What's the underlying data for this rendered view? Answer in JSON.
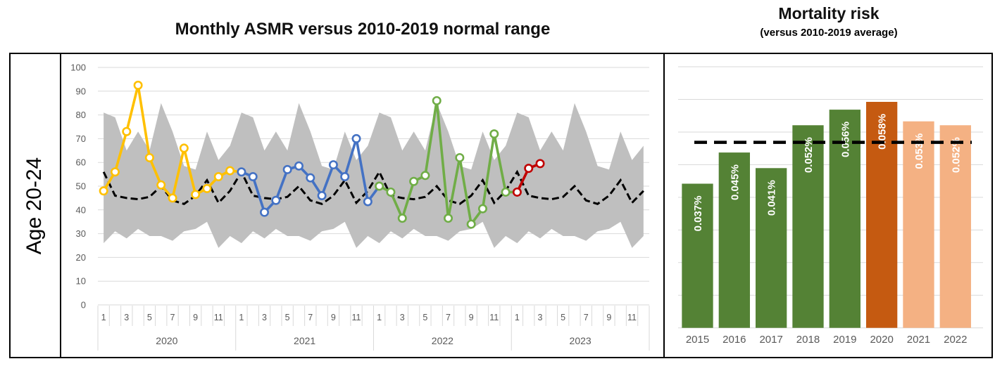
{
  "chart_data": [
    {
      "type": "line",
      "title": "Monthly ASMR versus 2010-2019 normal range",
      "row_label": "Age 20-24",
      "ylim": [
        0,
        100
      ],
      "y_ticks": [
        0,
        10,
        20,
        30,
        40,
        50,
        60,
        70,
        80,
        90,
        100
      ],
      "grid": "horizontal",
      "month_tick_labels": [
        "1",
        "3",
        "5",
        "7",
        "9",
        "11"
      ],
      "categories_years": [
        "2020",
        "2021",
        "2022",
        "2023"
      ],
      "normal_range_band": {
        "name": "2010-2019 normal range",
        "color": "#BFBFBF",
        "top_monthly": [
          81,
          79,
          65,
          73,
          65,
          85,
          73,
          58.5,
          57,
          73,
          61,
          67
        ],
        "bottom_monthly": [
          26,
          31,
          28,
          32,
          29,
          29,
          27,
          31,
          32,
          35,
          24,
          29
        ]
      },
      "average_line": {
        "name": "2010-2019 average",
        "style": "dashed",
        "color": "#000000",
        "values_monthly": [
          56,
          46,
          45,
          44.5,
          45.5,
          50,
          44,
          42.5,
          46,
          52.5,
          43,
          48
        ]
      },
      "series": [
        {
          "name": "2020",
          "color": "#FFC000",
          "values": [
            48,
            56,
            73,
            92.5,
            62,
            50.5,
            45,
            66,
            46.5,
            49,
            54,
            56.5
          ]
        },
        {
          "name": "2021",
          "color": "#4472C4",
          "values": [
            56,
            54,
            39,
            44,
            57,
            58.5,
            53.5,
            46,
            59,
            54,
            70,
            43.5
          ]
        },
        {
          "name": "2022",
          "color": "#70AD47",
          "values": [
            50,
            47.5,
            36.5,
            52,
            54.5,
            86,
            36.5,
            62,
            34,
            40.5,
            72,
            47.5
          ]
        },
        {
          "name": "2023",
          "color": "#C00000",
          "values": [
            47.5,
            57.5,
            59.5
          ]
        }
      ]
    },
    {
      "type": "bar",
      "title": "Mortality risk",
      "subtitle": "(versus 2010-2019 average)",
      "categories": [
        "2015",
        "2016",
        "2017",
        "2018",
        "2019",
        "2020",
        "2021",
        "2022"
      ],
      "values": [
        0.037,
        0.045,
        0.041,
        0.052,
        0.056,
        0.058,
        0.053,
        0.052
      ],
      "labels": [
        "0.037%",
        "0.045%",
        "0.041%",
        "0.052%",
        "0.056%",
        "0.058%",
        "0.053%",
        "0.052%"
      ],
      "bar_colors": [
        "#548235",
        "#548235",
        "#548235",
        "#548235",
        "#548235",
        "#C55A11",
        "#F4B183",
        "#F4B183"
      ],
      "label_color": "#FFFFFF",
      "baseline_dashed_value": 0.0476,
      "baseline_dashed_name": "2010-2019 average",
      "ylim": [
        0,
        0.0697
      ],
      "grid": true
    }
  ],
  "styles": {
    "gridline_color": "#D9D9D9",
    "tick_label_color": "#595959",
    "frame_color": "#000000"
  }
}
